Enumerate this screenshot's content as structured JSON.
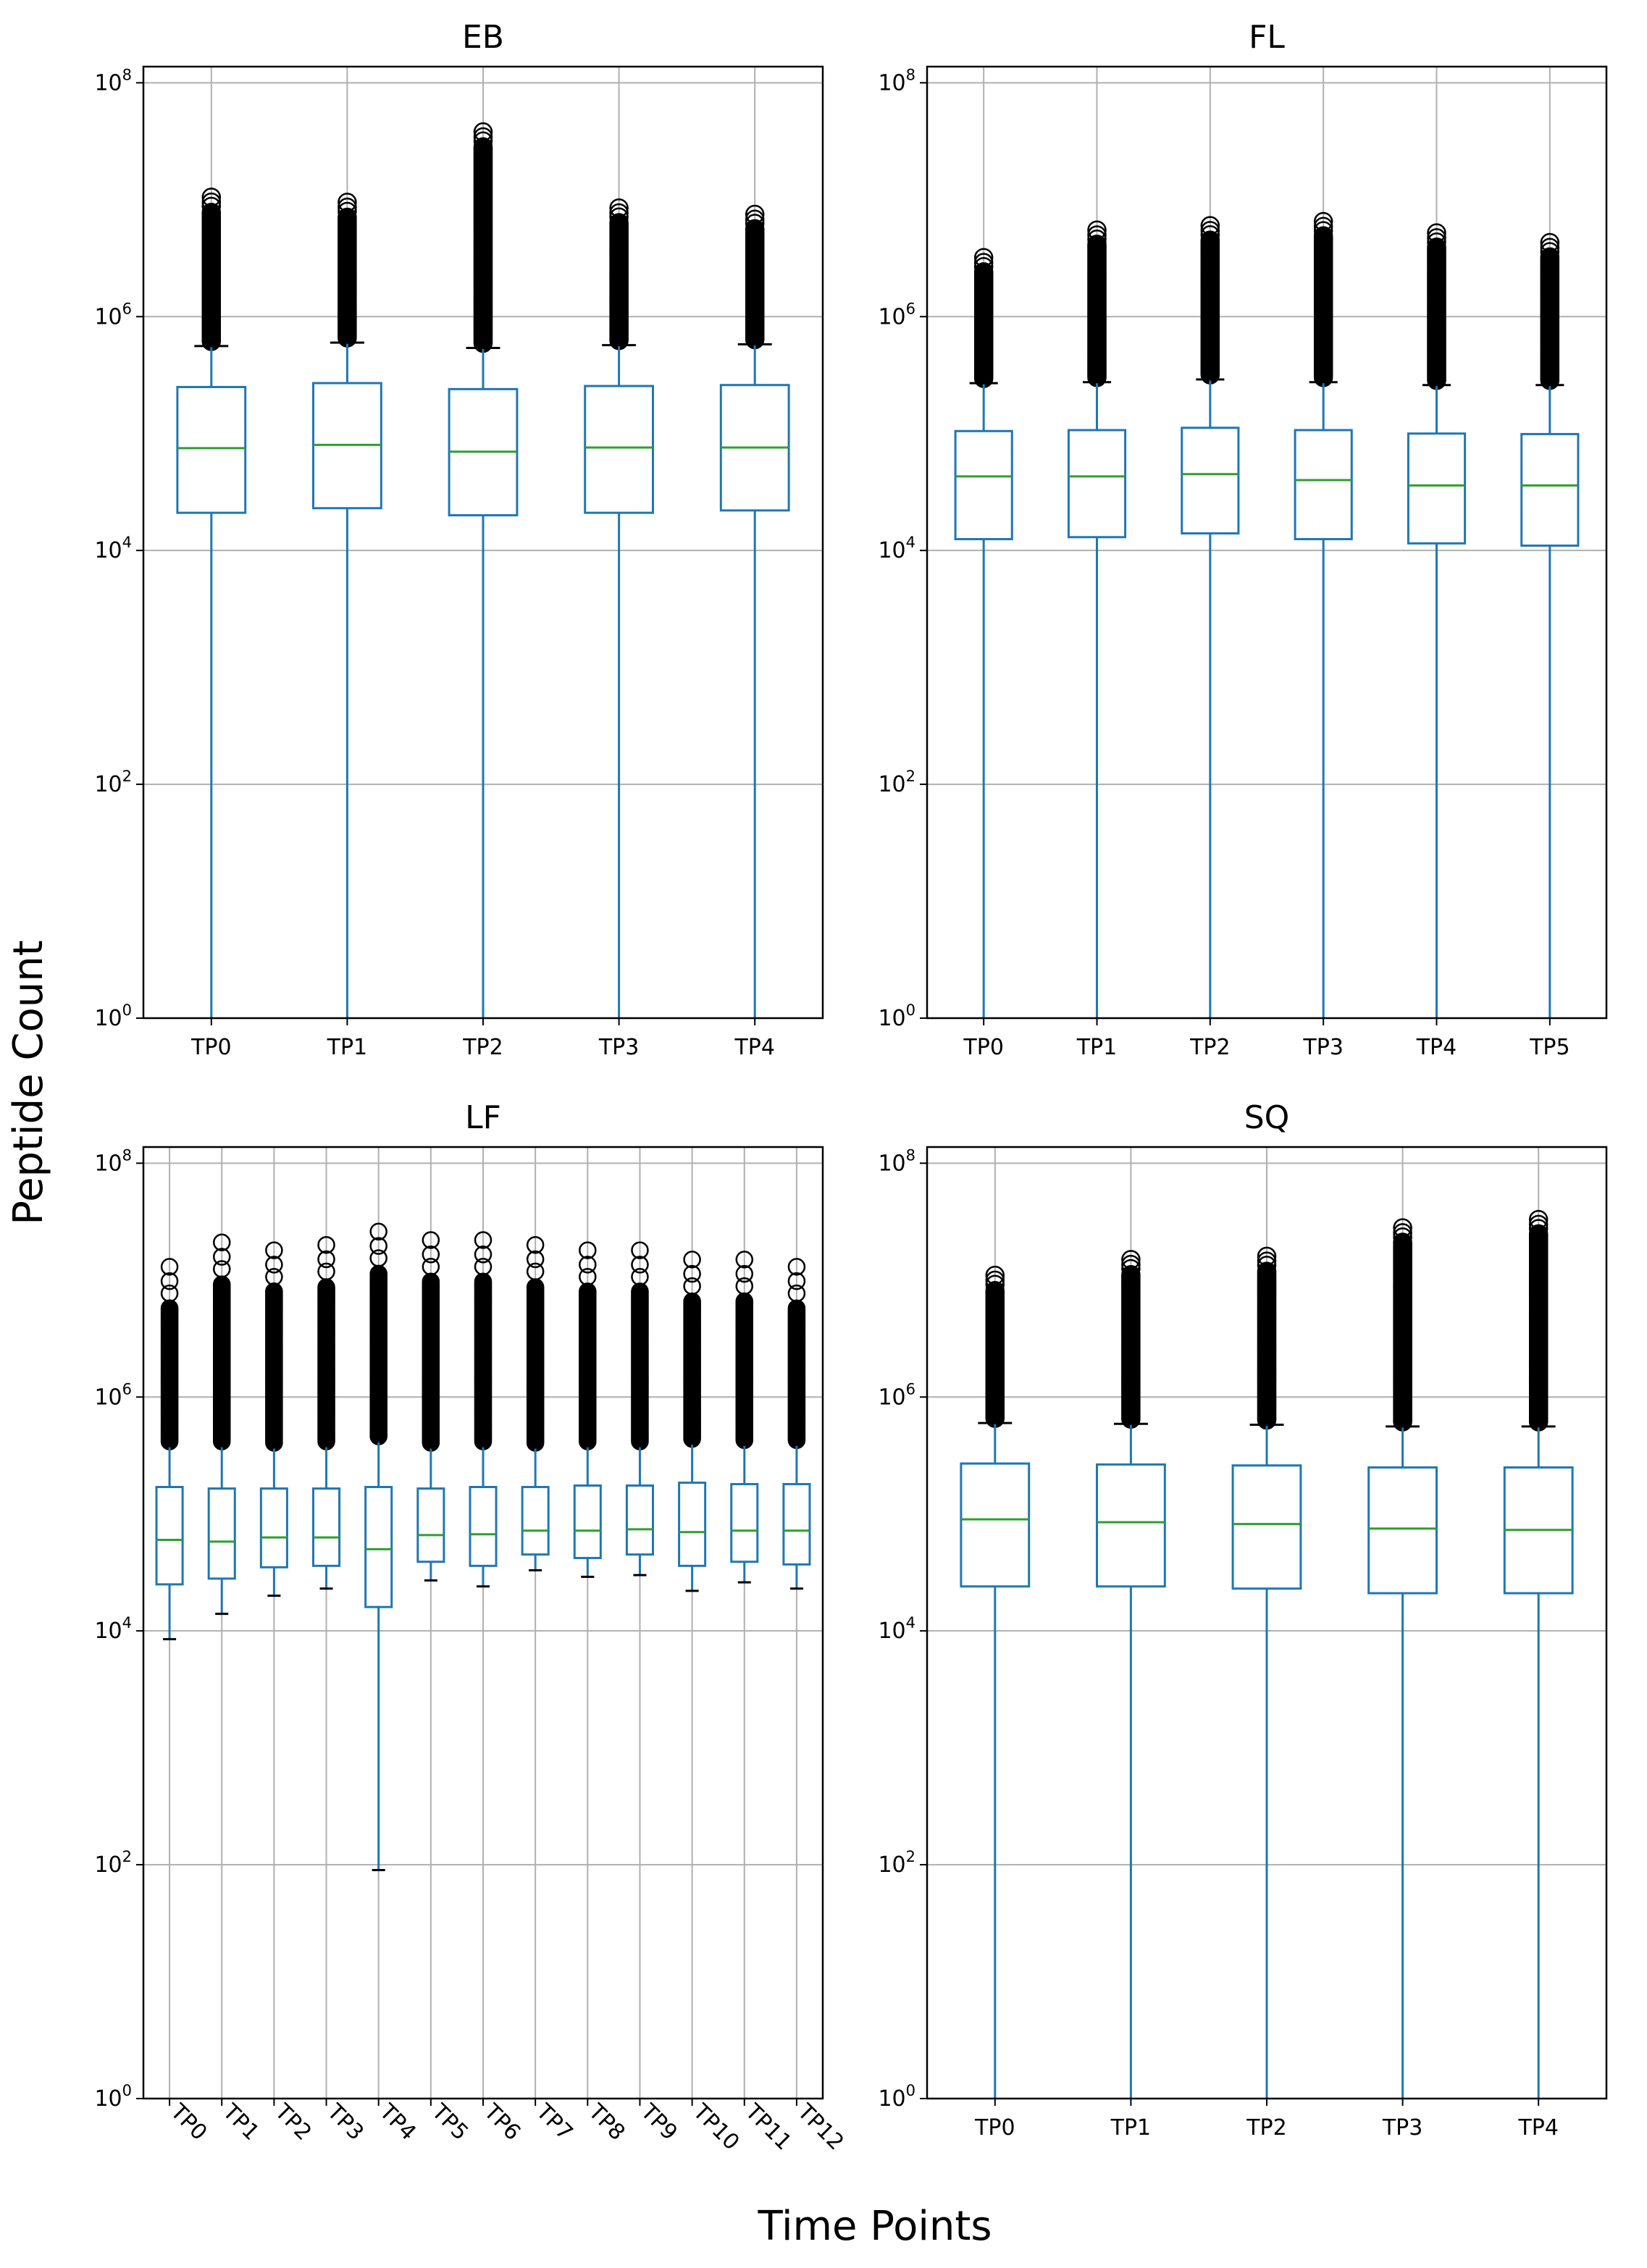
{
  "figure": {
    "ylabel": "Peptide Count",
    "xlabel": "Time Points"
  },
  "style": {
    "box_color": "#1f77b4",
    "median_color": "#2ca02c",
    "grid_color": "#b0b0b0",
    "outlier_color": "#000000"
  },
  "chart_data": [
    {
      "type": "box",
      "title": "EB",
      "yscale": "log",
      "ylim": [
        1,
        100000000
      ],
      "yticks": [
        1,
        100,
        10000,
        1000000,
        100000000
      ],
      "ytick_exponents": [
        "0",
        "2",
        "4",
        "6",
        "8"
      ],
      "grid": true,
      "categories": [
        "TP0",
        "TP1",
        "TP2",
        "TP3",
        "TP4"
      ],
      "boxes": [
        {
          "whislo": 1,
          "q1": 21000,
          "med": 75000,
          "q3": 250000,
          "whishi": 560000,
          "fliers_max": 10500000
        },
        {
          "whislo": 1,
          "q1": 23000,
          "med": 80000,
          "q3": 270000,
          "whishi": 600000,
          "fliers_max": 9500000
        },
        {
          "whislo": 1,
          "q1": 20000,
          "med": 70000,
          "q3": 240000,
          "whishi": 540000,
          "fliers_max": 38000000
        },
        {
          "whislo": 1,
          "q1": 21000,
          "med": 76000,
          "q3": 255000,
          "whishi": 570000,
          "fliers_max": 8500000
        },
        {
          "whislo": 1,
          "q1": 22000,
          "med": 76000,
          "q3": 260000,
          "whishi": 580000,
          "fliers_max": 7500000
        }
      ]
    },
    {
      "type": "box",
      "title": "FL",
      "yscale": "log",
      "ylim": [
        1,
        100000000
      ],
      "yticks": [
        1,
        100,
        10000,
        1000000,
        100000000
      ],
      "ytick_exponents": [
        "0",
        "2",
        "4",
        "6",
        "8"
      ],
      "grid": true,
      "categories": [
        "TP0",
        "TP1",
        "TP2",
        "TP3",
        "TP4",
        "TP5"
      ],
      "boxes": [
        {
          "whislo": 1,
          "q1": 12500,
          "med": 43000,
          "q3": 105000,
          "whishi": 270000,
          "fliers_max": 3200000
        },
        {
          "whislo": 1,
          "q1": 13000,
          "med": 43000,
          "q3": 107000,
          "whishi": 275000,
          "fliers_max": 5500000
        },
        {
          "whislo": 1,
          "q1": 14000,
          "med": 45000,
          "q3": 112000,
          "whishi": 290000,
          "fliers_max": 6000000
        },
        {
          "whislo": 1,
          "q1": 12500,
          "med": 40000,
          "q3": 107000,
          "whishi": 275000,
          "fliers_max": 6500000
        },
        {
          "whislo": 1,
          "q1": 11500,
          "med": 36000,
          "q3": 100000,
          "whishi": 260000,
          "fliers_max": 5200000
        },
        {
          "whislo": 1,
          "q1": 11000,
          "med": 36000,
          "q3": 99000,
          "whishi": 260000,
          "fliers_max": 4300000
        }
      ]
    },
    {
      "type": "box",
      "title": "LF",
      "yscale": "log",
      "ylim": [
        1,
        100000000
      ],
      "yticks": [
        1,
        100,
        10000,
        1000000,
        100000000
      ],
      "ytick_exponents": [
        "0",
        "2",
        "4",
        "6",
        "8"
      ],
      "grid": true,
      "xtick_rotation": -45,
      "categories": [
        "TP0",
        "TP1",
        "TP2",
        "TP3",
        "TP4",
        "TP5",
        "TP6",
        "TP7",
        "TP8",
        "TP9",
        "TP10",
        "TP11",
        "TP12"
      ],
      "boxes": [
        {
          "whislo": 8500,
          "q1": 25000,
          "med": 60000,
          "q3": 170000,
          "whishi": 380000,
          "fliers_max": 13000000
        },
        {
          "whislo": 14000,
          "q1": 28000,
          "med": 58000,
          "q3": 165000,
          "whishi": 380000,
          "fliers_max": 21000000
        },
        {
          "whislo": 20000,
          "q1": 35000,
          "med": 63000,
          "q3": 165000,
          "whishi": 370000,
          "fliers_max": 18000000
        },
        {
          "whislo": 23000,
          "q1": 36000,
          "med": 63000,
          "q3": 165000,
          "whishi": 380000,
          "fliers_max": 20000000
        },
        {
          "whislo": 90,
          "q1": 16000,
          "med": 50000,
          "q3": 170000,
          "whishi": 420000,
          "fliers_max": 26000000
        },
        {
          "whislo": 27000,
          "q1": 39000,
          "med": 66000,
          "q3": 165000,
          "whishi": 370000,
          "fliers_max": 22000000
        },
        {
          "whislo": 24000,
          "q1": 36000,
          "med": 67000,
          "q3": 170000,
          "whishi": 380000,
          "fliers_max": 22000000
        },
        {
          "whislo": 33000,
          "q1": 45000,
          "med": 72000,
          "q3": 170000,
          "whishi": 370000,
          "fliers_max": 20000000
        },
        {
          "whislo": 29000,
          "q1": 42000,
          "med": 72000,
          "q3": 175000,
          "whishi": 380000,
          "fliers_max": 18000000
        },
        {
          "whislo": 30000,
          "q1": 45000,
          "med": 74000,
          "q3": 175000,
          "whishi": 380000,
          "fliers_max": 18000000
        },
        {
          "whislo": 22000,
          "q1": 36000,
          "med": 70000,
          "q3": 185000,
          "whishi": 400000,
          "fliers_max": 15000000
        },
        {
          "whislo": 26000,
          "q1": 39000,
          "med": 72000,
          "q3": 180000,
          "whishi": 390000,
          "fliers_max": 15000000
        },
        {
          "whislo": 23000,
          "q1": 37000,
          "med": 72000,
          "q3": 180000,
          "whishi": 390000,
          "fliers_max": 13000000
        }
      ]
    },
    {
      "type": "box",
      "title": "SQ",
      "yscale": "log",
      "ylim": [
        1,
        100000000
      ],
      "yticks": [
        1,
        100,
        10000,
        1000000,
        100000000
      ],
      "ytick_exponents": [
        "0",
        "2",
        "4",
        "6",
        "8"
      ],
      "grid": true,
      "categories": [
        "TP0",
        "TP1",
        "TP2",
        "TP3",
        "TP4"
      ],
      "boxes": [
        {
          "whislo": 1,
          "q1": 24000,
          "med": 90000,
          "q3": 270000,
          "whishi": 600000,
          "fliers_max": 11000000
        },
        {
          "whislo": 1,
          "q1": 24000,
          "med": 85000,
          "q3": 265000,
          "whishi": 590000,
          "fliers_max": 15000000
        },
        {
          "whislo": 1,
          "q1": 23000,
          "med": 82000,
          "q3": 260000,
          "whishi": 580000,
          "fliers_max": 16000000
        },
        {
          "whislo": 1,
          "q1": 21000,
          "med": 75000,
          "q3": 250000,
          "whishi": 560000,
          "fliers_max": 28000000
        },
        {
          "whislo": 1,
          "q1": 21000,
          "med": 73000,
          "q3": 250000,
          "whishi": 560000,
          "fliers_max": 33000000
        }
      ]
    }
  ]
}
